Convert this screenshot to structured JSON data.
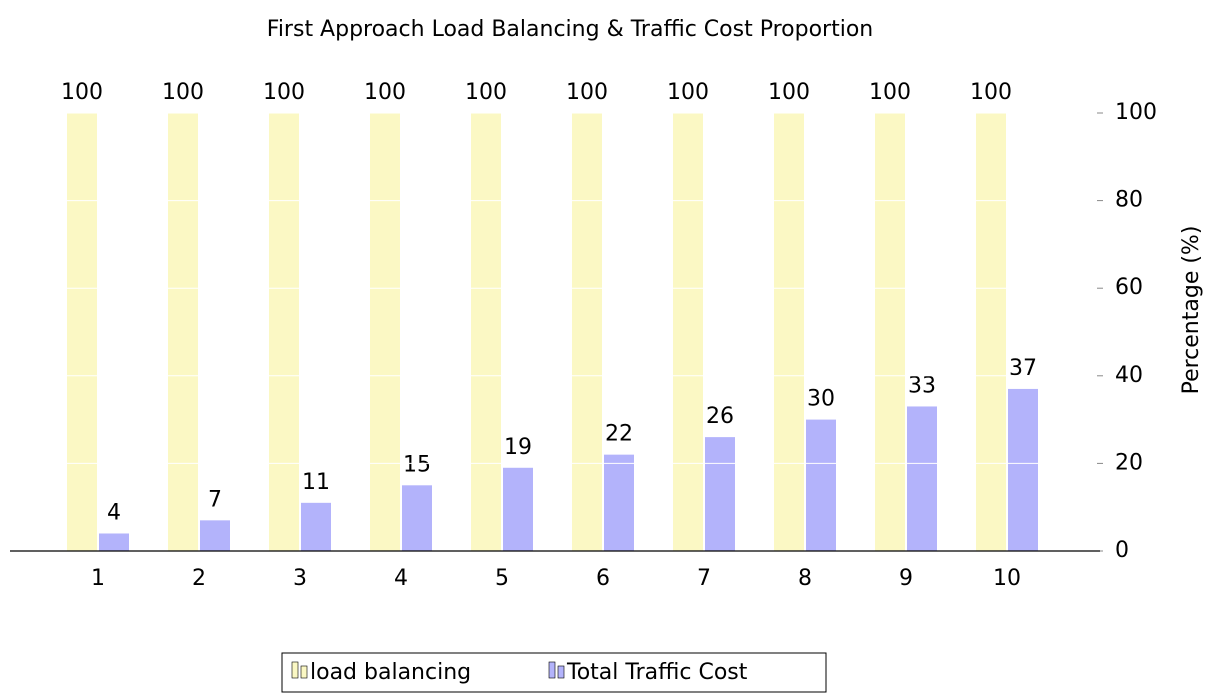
{
  "chart_data": {
    "type": "bar",
    "title": "First Approach Load Balancing & Traffic Cost Proportion",
    "y_label": "Percentage (%)",
    "categories": [
      "1",
      "2",
      "3",
      "4",
      "5",
      "6",
      "7",
      "8",
      "9",
      "10"
    ],
    "series": [
      {
        "name": "load balancing",
        "color": "#fbf8c4",
        "values": [
          100,
          100,
          100,
          100,
          100,
          100,
          100,
          100,
          100,
          100
        ]
      },
      {
        "name": "Total Traffic Cost",
        "color": "#b3b3fb",
        "values": [
          4,
          7,
          11,
          15,
          19,
          22,
          26,
          30,
          33,
          37
        ]
      }
    ],
    "ylim": [
      0,
      100
    ],
    "yticks": [
      0,
      20,
      40,
      60,
      80,
      100
    ],
    "grid": true,
    "legend": "bottom"
  }
}
